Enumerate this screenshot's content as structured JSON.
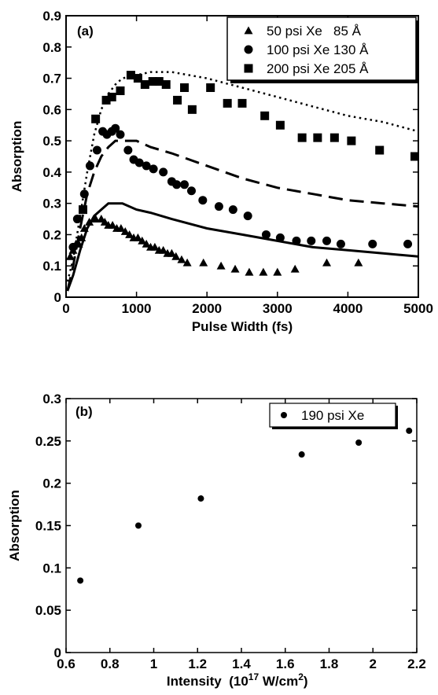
{
  "chart_data": [
    {
      "panel": "(a)",
      "type": "scatter",
      "xlabel": "Pulse Width (fs)",
      "ylabel": "Absorption",
      "xlim": [
        0,
        5000
      ],
      "ylim": [
        0,
        0.9
      ],
      "x_ticks": [
        "0",
        "1000",
        "2000",
        "3000",
        "4000",
        "5000"
      ],
      "y_ticks": [
        "0",
        "0.1",
        "0.2",
        "0.3",
        "0.4",
        "0.5",
        "0.6",
        "0.7",
        "0.8",
        "0.9"
      ],
      "legend_position": "top-right",
      "series": [
        {
          "name": "50 psi Xe   85 Å",
          "marker": "triangle",
          "points": [
            [
              60,
              0.13
            ],
            [
              100,
              0.15
            ],
            [
              140,
              0.17
            ],
            [
              180,
              0.17
            ],
            [
              220,
              0.19
            ],
            [
              260,
              0.22
            ],
            [
              330,
              0.24
            ],
            [
              420,
              0.25
            ],
            [
              500,
              0.25
            ],
            [
              550,
              0.24
            ],
            [
              600,
              0.23
            ],
            [
              660,
              0.23
            ],
            [
              720,
              0.22
            ],
            [
              780,
              0.22
            ],
            [
              840,
              0.21
            ],
            [
              900,
              0.2
            ],
            [
              960,
              0.19
            ],
            [
              1020,
              0.19
            ],
            [
              1080,
              0.18
            ],
            [
              1140,
              0.17
            ],
            [
              1200,
              0.16
            ],
            [
              1260,
              0.16
            ],
            [
              1320,
              0.15
            ],
            [
              1380,
              0.15
            ],
            [
              1440,
              0.14
            ],
            [
              1500,
              0.14
            ],
            [
              1560,
              0.13
            ],
            [
              1640,
              0.12
            ],
            [
              1720,
              0.11
            ],
            [
              1950,
              0.11
            ],
            [
              2200,
              0.1
            ],
            [
              2400,
              0.09
            ],
            [
              2600,
              0.08
            ],
            [
              2800,
              0.08
            ],
            [
              3000,
              0.08
            ],
            [
              3250,
              0.09
            ],
            [
              3700,
              0.11
            ],
            [
              4150,
              0.11
            ]
          ]
        },
        {
          "name": "100 psi Xe 130 Å",
          "marker": "circle",
          "points": [
            [
              100,
              0.16
            ],
            [
              160,
              0.25
            ],
            [
              260,
              0.33
            ],
            [
              340,
              0.42
            ],
            [
              440,
              0.47
            ],
            [
              520,
              0.53
            ],
            [
              580,
              0.52
            ],
            [
              650,
              0.53
            ],
            [
              700,
              0.54
            ],
            [
              770,
              0.52
            ],
            [
              880,
              0.47
            ],
            [
              960,
              0.44
            ],
            [
              1040,
              0.43
            ],
            [
              1140,
              0.42
            ],
            [
              1240,
              0.41
            ],
            [
              1380,
              0.4
            ],
            [
              1500,
              0.37
            ],
            [
              1570,
              0.36
            ],
            [
              1680,
              0.36
            ],
            [
              1780,
              0.34
            ],
            [
              1940,
              0.31
            ],
            [
              2170,
              0.29
            ],
            [
              2370,
              0.28
            ],
            [
              2580,
              0.26
            ],
            [
              2840,
              0.2
            ],
            [
              3040,
              0.19
            ],
            [
              3270,
              0.18
            ],
            [
              3480,
              0.18
            ],
            [
              3700,
              0.18
            ],
            [
              3900,
              0.17
            ],
            [
              4350,
              0.17
            ],
            [
              4850,
              0.17
            ]
          ]
        },
        {
          "name": "200 psi Xe 205 Å",
          "marker": "square",
          "points": [
            [
              240,
              0.28
            ],
            [
              420,
              0.57
            ],
            [
              570,
              0.63
            ],
            [
              650,
              0.64
            ],
            [
              770,
              0.66
            ],
            [
              920,
              0.71
            ],
            [
              1020,
              0.7
            ],
            [
              1120,
              0.68
            ],
            [
              1230,
              0.69
            ],
            [
              1320,
              0.69
            ],
            [
              1420,
              0.68
            ],
            [
              1580,
              0.63
            ],
            [
              1680,
              0.67
            ],
            [
              1790,
              0.6
            ],
            [
              2050,
              0.67
            ],
            [
              2290,
              0.62
            ],
            [
              2500,
              0.62
            ],
            [
              2820,
              0.58
            ],
            [
              3040,
              0.55
            ],
            [
              3350,
              0.51
            ],
            [
              3570,
              0.51
            ],
            [
              3810,
              0.51
            ],
            [
              4050,
              0.5
            ],
            [
              4450,
              0.47
            ],
            [
              4950,
              0.45
            ]
          ]
        }
      ],
      "lines": [
        {
          "style": "solid",
          "points": [
            [
              20,
              0.02
            ],
            [
              100,
              0.07
            ],
            [
              200,
              0.15
            ],
            [
              300,
              0.22
            ],
            [
              400,
              0.26
            ],
            [
              500,
              0.28
            ],
            [
              600,
              0.3
            ],
            [
              700,
              0.3
            ],
            [
              800,
              0.3
            ],
            [
              1000,
              0.28
            ],
            [
              1200,
              0.27
            ],
            [
              1500,
              0.25
            ],
            [
              2000,
              0.22
            ],
            [
              2500,
              0.2
            ],
            [
              3000,
              0.18
            ],
            [
              3500,
              0.16
            ],
            [
              4000,
              0.15
            ],
            [
              4500,
              0.14
            ],
            [
              5000,
              0.13
            ]
          ]
        },
        {
          "style": "dashed",
          "points": [
            [
              20,
              0.02
            ],
            [
              100,
              0.1
            ],
            [
              200,
              0.22
            ],
            [
              300,
              0.33
            ],
            [
              400,
              0.4
            ],
            [
              500,
              0.45
            ],
            [
              600,
              0.48
            ],
            [
              700,
              0.5
            ],
            [
              800,
              0.5
            ],
            [
              1000,
              0.5
            ],
            [
              1200,
              0.48
            ],
            [
              1500,
              0.46
            ],
            [
              2000,
              0.42
            ],
            [
              2500,
              0.38
            ],
            [
              3000,
              0.35
            ],
            [
              3500,
              0.33
            ],
            [
              4000,
              0.31
            ],
            [
              4500,
              0.3
            ],
            [
              5000,
              0.29
            ]
          ]
        },
        {
          "style": "dotted",
          "points": [
            [
              20,
              0.05
            ],
            [
              100,
              0.12
            ],
            [
              200,
              0.26
            ],
            [
              300,
              0.4
            ],
            [
              400,
              0.52
            ],
            [
              500,
              0.6
            ],
            [
              600,
              0.65
            ],
            [
              700,
              0.68
            ],
            [
              800,
              0.7
            ],
            [
              1000,
              0.71
            ],
            [
              1200,
              0.72
            ],
            [
              1500,
              0.72
            ],
            [
              2000,
              0.7
            ],
            [
              2500,
              0.67
            ],
            [
              3000,
              0.64
            ],
            [
              3500,
              0.61
            ],
            [
              4000,
              0.58
            ],
            [
              4500,
              0.56
            ],
            [
              5000,
              0.53
            ]
          ]
        }
      ]
    },
    {
      "panel": "(b)",
      "type": "scatter",
      "xlabel_prefix": "Intensity  (10",
      "xlabel_exp": "17",
      "xlabel_mid": " W/cm",
      "xlabel_sup2": "2",
      "xlabel_suffix": ")",
      "ylabel": "Absorption",
      "xlim": [
        0.6,
        2.2
      ],
      "ylim": [
        0,
        0.3
      ],
      "x_ticks": [
        "0.6",
        "0.8",
        "1",
        "1.2",
        "1.4",
        "1.6",
        "1.8",
        "2",
        "2.2"
      ],
      "y_ticks": [
        "0",
        "0.05",
        "0.1",
        "0.15",
        "0.2",
        "0.25",
        "0.3"
      ],
      "legend_position": "top-right",
      "series": [
        {
          "name": "190 psi Xe",
          "marker": "circle",
          "points": [
            [
              0.665,
              0.085
            ],
            [
              0.93,
              0.15
            ],
            [
              1.215,
              0.182
            ],
            [
              1.675,
              0.234
            ],
            [
              1.935,
              0.248
            ],
            [
              2.165,
              0.262
            ]
          ]
        }
      ]
    }
  ]
}
